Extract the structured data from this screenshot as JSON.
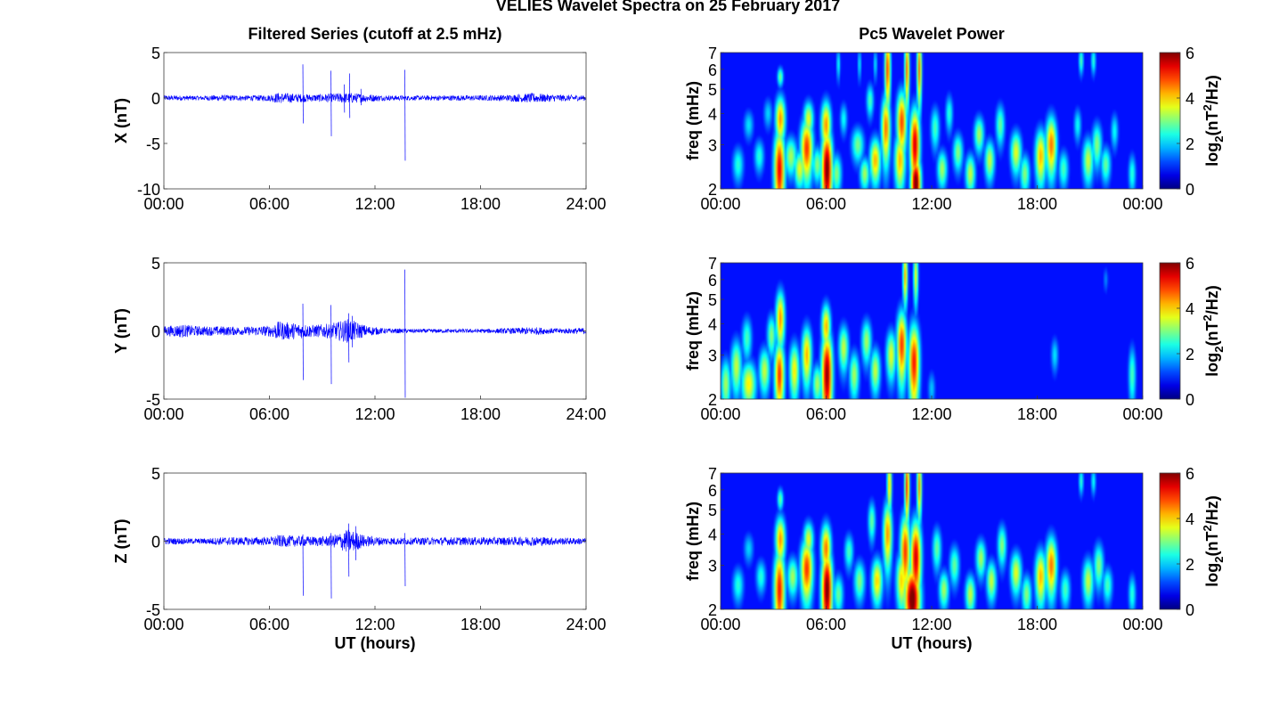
{
  "figure": {
    "title": "VELIES Wavelet Spectra on 25 February 2017",
    "colors": {
      "trace": "#0000ff",
      "heat_background": "#00008f",
      "frame": "#3a3a3a"
    }
  },
  "chart_data": [
    {
      "id": "x-filtered",
      "type": "line",
      "title": "Filtered Series (cutoff at 2.5 mHz)",
      "xlabel": "",
      "ylabel": "X (nT)",
      "xlim": [
        0,
        24
      ],
      "ylim": [
        -10,
        5
      ],
      "x_ticks": [
        "00:00",
        "06:00",
        "12:00",
        "18:00",
        "24:00"
      ],
      "y_ticks": [
        "5",
        "0",
        "-5",
        "-10"
      ],
      "noise_envelope": [
        [
          0,
          0.3
        ],
        [
          2,
          0.25
        ],
        [
          3.3,
          0.35
        ],
        [
          4.2,
          0.3
        ],
        [
          5,
          0.3
        ],
        [
          6,
          0.35
        ],
        [
          6.5,
          0.6
        ],
        [
          7.5,
          0.5
        ],
        [
          8.5,
          0.4
        ],
        [
          9.5,
          0.5
        ],
        [
          10.5,
          0.6
        ],
        [
          11.5,
          0.45
        ],
        [
          12.5,
          0.3
        ],
        [
          14,
          0.25
        ],
        [
          16,
          0.3
        ],
        [
          18,
          0.3
        ],
        [
          19.5,
          0.35
        ],
        [
          21,
          0.55
        ],
        [
          22,
          0.4
        ],
        [
          23,
          0.35
        ],
        [
          24,
          0.3
        ]
      ],
      "spikes": [
        [
          7.9,
          3.7,
          -2.8
        ],
        [
          9.5,
          3.0,
          -4.2
        ],
        [
          10.55,
          2.7,
          -2.2
        ],
        [
          10.25,
          1.5,
          -1.6
        ],
        [
          11.2,
          1.0,
          -0.8
        ],
        [
          13.7,
          3.1,
          -6.9
        ]
      ]
    },
    {
      "id": "y-filtered",
      "type": "line",
      "title": "",
      "xlabel": "",
      "ylabel": "Y (nT)",
      "xlim": [
        0,
        24
      ],
      "ylim": [
        -5,
        5
      ],
      "x_ticks": [
        "00:00",
        "06:00",
        "12:00",
        "18:00",
        "24:00"
      ],
      "y_ticks": [
        "5",
        "0",
        "-5"
      ],
      "noise_envelope": [
        [
          0,
          0.35
        ],
        [
          1,
          0.5
        ],
        [
          2,
          0.35
        ],
        [
          3.3,
          0.35
        ],
        [
          4.5,
          0.3
        ],
        [
          6,
          0.4
        ],
        [
          6.5,
          0.7
        ],
        [
          7.5,
          0.6
        ],
        [
          8.5,
          0.45
        ],
        [
          9.5,
          0.55
        ],
        [
          10.5,
          0.9
        ],
        [
          11.5,
          0.4
        ],
        [
          12.5,
          0.2
        ],
        [
          14,
          0.15
        ],
        [
          16,
          0.15
        ],
        [
          18,
          0.15
        ],
        [
          19.5,
          0.2
        ],
        [
          21,
          0.3
        ],
        [
          22,
          0.2
        ],
        [
          23,
          0.2
        ],
        [
          24,
          0.25
        ]
      ],
      "spikes": [
        [
          7.9,
          2.0,
          -3.6
        ],
        [
          9.5,
          1.9,
          -3.9
        ],
        [
          10.5,
          1.3,
          -2.3
        ],
        [
          10.7,
          1.1,
          -1.2
        ],
        [
          13.7,
          4.5,
          -4.9
        ]
      ]
    },
    {
      "id": "z-filtered",
      "type": "line",
      "title": "",
      "xlabel": "UT (hours)",
      "ylabel": "Z (nT)",
      "xlim": [
        0,
        24
      ],
      "ylim": [
        -5,
        5
      ],
      "x_ticks": [
        "00:00",
        "06:00",
        "12:00",
        "18:00",
        "24:00"
      ],
      "y_ticks": [
        "5",
        "0",
        "-5"
      ],
      "noise_envelope": [
        [
          0,
          0.25
        ],
        [
          2,
          0.2
        ],
        [
          3.3,
          0.3
        ],
        [
          4.5,
          0.3
        ],
        [
          6,
          0.3
        ],
        [
          6.5,
          0.45
        ],
        [
          7.5,
          0.4
        ],
        [
          8.5,
          0.35
        ],
        [
          9.5,
          0.4
        ],
        [
          10.5,
          0.9
        ],
        [
          11.5,
          0.4
        ],
        [
          12.5,
          0.3
        ],
        [
          14,
          0.25
        ],
        [
          16,
          0.3
        ],
        [
          18,
          0.3
        ],
        [
          19.5,
          0.3
        ],
        [
          21,
          0.35
        ],
        [
          22,
          0.3
        ],
        [
          23,
          0.25
        ],
        [
          24,
          0.25
        ]
      ],
      "spikes": [
        [
          7.9,
          0.5,
          -4.0
        ],
        [
          9.5,
          0.6,
          -4.2
        ],
        [
          10.5,
          1.3,
          -2.6
        ],
        [
          10.9,
          1.1,
          -1.4
        ],
        [
          13.7,
          0.6,
          -3.3
        ]
      ]
    },
    {
      "id": "x-wavelet",
      "type": "heatmap",
      "title": "Pc5 Wavelet Power",
      "xlabel": "",
      "ylabel": "freq (mHz)",
      "yscale": "log",
      "xlim": [
        0,
        24
      ],
      "ylim": [
        2,
        7
      ],
      "x_ticks": [
        "00:00",
        "06:00",
        "12:00",
        "18:00",
        "00:00"
      ],
      "y_ticks": [
        "2",
        "3",
        "4",
        "5",
        "6",
        "7"
      ],
      "colorbar": {
        "label_base": "log",
        "label_sub": "2",
        "label_unit_pre": "(nT",
        "label_sup": "2",
        "label_unit_post": "/Hz)",
        "ticks": [
          "0",
          "2",
          "4",
          "6"
        ],
        "range": [
          0,
          6
        ]
      },
      "blobs": [
        [
          1.0,
          2.5,
          0.22,
          0.3,
          2.0
        ],
        [
          1.6,
          3.6,
          0.2,
          0.35,
          1.6
        ],
        [
          2.2,
          2.7,
          0.2,
          0.3,
          2.0
        ],
        [
          2.7,
          4.0,
          0.18,
          0.4,
          1.5
        ],
        [
          3.35,
          2.4,
          0.22,
          0.7,
          5.0
        ],
        [
          3.4,
          3.8,
          0.2,
          0.6,
          4.0
        ],
        [
          3.4,
          5.6,
          0.12,
          0.35,
          2.5
        ],
        [
          4.0,
          2.7,
          0.25,
          0.35,
          2.8
        ],
        [
          4.5,
          2.4,
          0.22,
          0.3,
          3.2
        ],
        [
          4.9,
          2.9,
          0.25,
          0.6,
          4.6
        ],
        [
          5.0,
          3.8,
          0.2,
          0.45,
          3.2
        ],
        [
          5.5,
          2.5,
          0.2,
          0.3,
          2.6
        ],
        [
          6.05,
          2.4,
          0.22,
          0.7,
          5.8
        ],
        [
          6.0,
          3.6,
          0.2,
          0.6,
          4.0
        ],
        [
          6.6,
          2.3,
          0.2,
          0.3,
          2.6
        ],
        [
          7.0,
          3.8,
          0.15,
          0.4,
          1.8
        ],
        [
          7.8,
          3.0,
          0.25,
          0.35,
          2.5
        ],
        [
          8.2,
          2.3,
          0.2,
          0.25,
          2.8
        ],
        [
          8.5,
          4.5,
          0.15,
          0.5,
          2.2
        ],
        [
          8.8,
          2.6,
          0.22,
          0.4,
          3.8
        ],
        [
          9.4,
          3.5,
          0.18,
          0.8,
          4.2
        ],
        [
          9.5,
          6.0,
          0.12,
          1.5,
          4.5
        ],
        [
          10.2,
          2.6,
          0.22,
          0.5,
          3.8
        ],
        [
          10.3,
          3.7,
          0.2,
          0.8,
          4.5
        ],
        [
          10.6,
          6.0,
          0.1,
          1.5,
          4.2
        ],
        [
          11.1,
          2.1,
          0.2,
          0.4,
          6.0
        ],
        [
          11.05,
          3.0,
          0.2,
          0.8,
          5.2
        ],
        [
          11.3,
          6.0,
          0.1,
          1.5,
          4.2
        ],
        [
          12.2,
          3.5,
          0.18,
          0.5,
          2.2
        ],
        [
          12.6,
          2.4,
          0.2,
          0.3,
          2.8
        ],
        [
          13.0,
          4.0,
          0.15,
          0.5,
          2.0
        ],
        [
          13.5,
          2.8,
          0.2,
          0.35,
          2.6
        ],
        [
          14.2,
          2.3,
          0.2,
          0.3,
          3.0
        ],
        [
          14.7,
          3.3,
          0.2,
          0.4,
          2.8
        ],
        [
          15.3,
          2.6,
          0.2,
          0.35,
          3.0
        ],
        [
          15.9,
          3.6,
          0.18,
          0.5,
          2.4
        ],
        [
          16.8,
          2.8,
          0.22,
          0.4,
          3.2
        ],
        [
          17.3,
          2.3,
          0.2,
          0.3,
          2.6
        ],
        [
          18.2,
          2.7,
          0.22,
          0.5,
          3.8
        ],
        [
          18.8,
          3.0,
          0.22,
          0.6,
          4.2
        ],
        [
          19.5,
          2.4,
          0.2,
          0.3,
          2.2
        ],
        [
          20.3,
          3.6,
          0.15,
          0.4,
          1.8
        ],
        [
          20.9,
          2.6,
          0.22,
          0.4,
          3.0
        ],
        [
          21.4,
          3.0,
          0.2,
          0.45,
          2.6
        ],
        [
          21.9,
          2.5,
          0.2,
          0.3,
          2.4
        ],
        [
          22.4,
          3.4,
          0.15,
          0.4,
          1.8
        ],
        [
          23.4,
          2.3,
          0.15,
          0.3,
          2.0
        ],
        [
          20.5,
          6.5,
          0.1,
          0.6,
          2.2
        ],
        [
          21.2,
          6.5,
          0.1,
          0.6,
          2.0
        ],
        [
          6.7,
          6.3,
          0.08,
          0.7,
          1.8
        ],
        [
          7.9,
          6.3,
          0.08,
          0.7,
          1.6
        ],
        [
          8.8,
          6.3,
          0.08,
          0.7,
          1.6
        ]
      ]
    },
    {
      "id": "y-wavelet",
      "type": "heatmap",
      "title": "",
      "xlabel": "",
      "ylabel": "freq (mHz)",
      "yscale": "log",
      "xlim": [
        0,
        24
      ],
      "ylim": [
        2,
        7
      ],
      "x_ticks": [
        "00:00",
        "06:00",
        "12:00",
        "18:00",
        "00:00"
      ],
      "y_ticks": [
        "2",
        "3",
        "4",
        "5",
        "6",
        "7"
      ],
      "colorbar": {
        "label_base": "log",
        "label_sub": "2",
        "label_unit_pre": "(nT",
        "label_sup": "2",
        "label_unit_post": "/Hz)",
        "ticks": [
          "0",
          "2",
          "4",
          "6"
        ],
        "range": [
          0,
          6
        ]
      },
      "blobs": [
        [
          0.3,
          2.3,
          0.2,
          0.4,
          2.8
        ],
        [
          0.9,
          2.7,
          0.22,
          0.5,
          3.0
        ],
        [
          1.6,
          2.3,
          0.3,
          0.35,
          3.4
        ],
        [
          1.5,
          3.5,
          0.2,
          0.5,
          2.2
        ],
        [
          2.5,
          2.6,
          0.22,
          0.4,
          3.0
        ],
        [
          2.9,
          3.6,
          0.18,
          0.5,
          2.6
        ],
        [
          3.35,
          2.5,
          0.2,
          0.6,
          4.6
        ],
        [
          3.4,
          4.2,
          0.18,
          0.8,
          4.0
        ],
        [
          4.2,
          2.6,
          0.2,
          0.5,
          3.4
        ],
        [
          4.9,
          3.0,
          0.2,
          0.6,
          3.8
        ],
        [
          5.5,
          2.3,
          0.2,
          0.3,
          2.8
        ],
        [
          6.05,
          2.5,
          0.22,
          0.8,
          5.6
        ],
        [
          6.0,
          3.9,
          0.18,
          0.6,
          3.8
        ],
        [
          7.0,
          3.2,
          0.2,
          0.5,
          3.0
        ],
        [
          7.6,
          2.5,
          0.2,
          0.4,
          2.8
        ],
        [
          8.3,
          3.4,
          0.2,
          0.5,
          2.8
        ],
        [
          8.8,
          2.6,
          0.2,
          0.4,
          3.0
        ],
        [
          9.7,
          3.0,
          0.2,
          0.5,
          3.2
        ],
        [
          10.3,
          3.3,
          0.2,
          0.8,
          4.6
        ],
        [
          10.5,
          6.2,
          0.1,
          1.2,
          3.8
        ],
        [
          11.0,
          2.8,
          0.22,
          0.8,
          4.8
        ],
        [
          11.1,
          6.2,
          0.1,
          1.2,
          3.2
        ],
        [
          12.0,
          2.2,
          0.15,
          0.25,
          1.4
        ],
        [
          19.0,
          3.0,
          0.15,
          0.35,
          1.6
        ],
        [
          23.4,
          2.5,
          0.15,
          0.5,
          2.2
        ],
        [
          21.9,
          6.0,
          0.1,
          0.5,
          1.0
        ]
      ]
    },
    {
      "id": "z-wavelet",
      "type": "heatmap",
      "title": "",
      "xlabel": "UT (hours)",
      "ylabel": "freq (mHz)",
      "yscale": "log",
      "xlim": [
        0,
        24
      ],
      "ylim": [
        2,
        7
      ],
      "x_ticks": [
        "00:00",
        "06:00",
        "12:00",
        "18:00",
        "00:00"
      ],
      "y_ticks": [
        "2",
        "3",
        "4",
        "5",
        "6",
        "7"
      ],
      "colorbar": {
        "label_base": "log",
        "label_sub": "2",
        "label_unit_pre": "(nT",
        "label_sup": "2",
        "label_unit_post": "/Hz)",
        "ticks": [
          "0",
          "2",
          "4",
          "6"
        ],
        "range": [
          0,
          6
        ]
      },
      "blobs": [
        [
          1.0,
          2.5,
          0.22,
          0.3,
          2.0
        ],
        [
          1.6,
          3.5,
          0.2,
          0.35,
          1.5
        ],
        [
          2.3,
          2.7,
          0.2,
          0.3,
          2.0
        ],
        [
          3.35,
          2.4,
          0.22,
          0.7,
          4.8
        ],
        [
          3.4,
          3.8,
          0.2,
          0.6,
          4.0
        ],
        [
          3.4,
          5.5,
          0.12,
          0.4,
          2.4
        ],
        [
          4.1,
          2.7,
          0.22,
          0.35,
          2.8
        ],
        [
          4.9,
          2.9,
          0.25,
          0.6,
          4.6
        ],
        [
          5.0,
          3.8,
          0.2,
          0.45,
          3.2
        ],
        [
          6.05,
          2.4,
          0.22,
          0.7,
          5.8
        ],
        [
          6.0,
          3.5,
          0.2,
          0.6,
          4.2
        ],
        [
          6.7,
          2.3,
          0.2,
          0.3,
          2.4
        ],
        [
          7.3,
          3.4,
          0.18,
          0.4,
          2.2
        ],
        [
          7.9,
          2.6,
          0.22,
          0.35,
          2.6
        ],
        [
          8.6,
          4.5,
          0.15,
          0.6,
          2.4
        ],
        [
          8.9,
          2.6,
          0.22,
          0.4,
          3.6
        ],
        [
          9.5,
          4.0,
          0.18,
          0.9,
          4.0
        ],
        [
          9.6,
          6.3,
          0.1,
          1.2,
          3.6
        ],
        [
          10.3,
          2.6,
          0.22,
          0.5,
          3.6
        ],
        [
          10.5,
          3.4,
          0.2,
          0.9,
          4.6
        ],
        [
          10.6,
          6.2,
          0.1,
          1.5,
          4.6
        ],
        [
          10.9,
          2.2,
          0.32,
          0.5,
          6.0
        ],
        [
          11.1,
          3.2,
          0.22,
          0.9,
          5.2
        ],
        [
          11.3,
          6.2,
          0.1,
          1.4,
          4.0
        ],
        [
          12.3,
          3.5,
          0.18,
          0.5,
          2.4
        ],
        [
          12.7,
          2.4,
          0.2,
          0.3,
          2.8
        ],
        [
          13.3,
          3.0,
          0.2,
          0.4,
          2.4
        ],
        [
          14.2,
          2.3,
          0.2,
          0.3,
          3.0
        ],
        [
          14.8,
          3.2,
          0.2,
          0.4,
          2.8
        ],
        [
          15.4,
          2.6,
          0.2,
          0.35,
          3.0
        ],
        [
          16.0,
          3.6,
          0.18,
          0.5,
          2.6
        ],
        [
          16.8,
          2.8,
          0.22,
          0.4,
          3.2
        ],
        [
          17.4,
          2.3,
          0.2,
          0.3,
          2.6
        ],
        [
          18.2,
          2.7,
          0.22,
          0.5,
          3.8
        ],
        [
          18.8,
          3.0,
          0.22,
          0.6,
          4.2
        ],
        [
          19.6,
          2.4,
          0.2,
          0.3,
          2.2
        ],
        [
          20.9,
          2.6,
          0.22,
          0.4,
          3.0
        ],
        [
          21.5,
          3.0,
          0.2,
          0.45,
          2.6
        ],
        [
          22.0,
          2.5,
          0.2,
          0.3,
          2.2
        ],
        [
          23.4,
          2.3,
          0.15,
          0.3,
          2.0
        ],
        [
          20.5,
          6.5,
          0.1,
          0.6,
          2.0
        ],
        [
          21.2,
          6.5,
          0.1,
          0.6,
          1.8
        ]
      ]
    }
  ]
}
